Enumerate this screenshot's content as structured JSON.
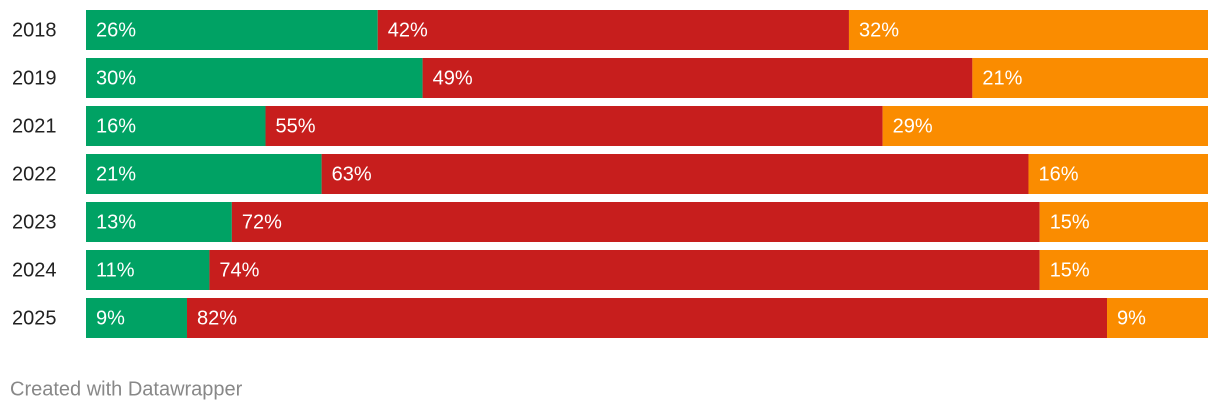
{
  "chart_data": {
    "type": "stacked-bar",
    "categories": [
      "2018",
      "2019",
      "2021",
      "2022",
      "2023",
      "2024",
      "2025"
    ],
    "series": [
      {
        "color": "#00a264",
        "values": [
          26,
          30,
          16,
          21,
          13,
          11,
          9
        ],
        "value_labels": [
          "26%",
          "30%",
          "16%",
          "21%",
          "13%",
          "11%",
          "9%"
        ]
      },
      {
        "color": "#c71e1d",
        "values": [
          42,
          49,
          55,
          63,
          72,
          74,
          82
        ],
        "value_labels": [
          "42%",
          "49%",
          "55%",
          "63%",
          "72%",
          "74%",
          "82%"
        ]
      },
      {
        "color": "#fa8c00",
        "values": [
          32,
          21,
          29,
          16,
          15,
          15,
          9
        ],
        "value_labels": [
          "32%",
          "21%",
          "29%",
          "16%",
          "15%",
          "15%",
          "9%"
        ]
      }
    ],
    "footer": "Created with Datawrapper"
  }
}
